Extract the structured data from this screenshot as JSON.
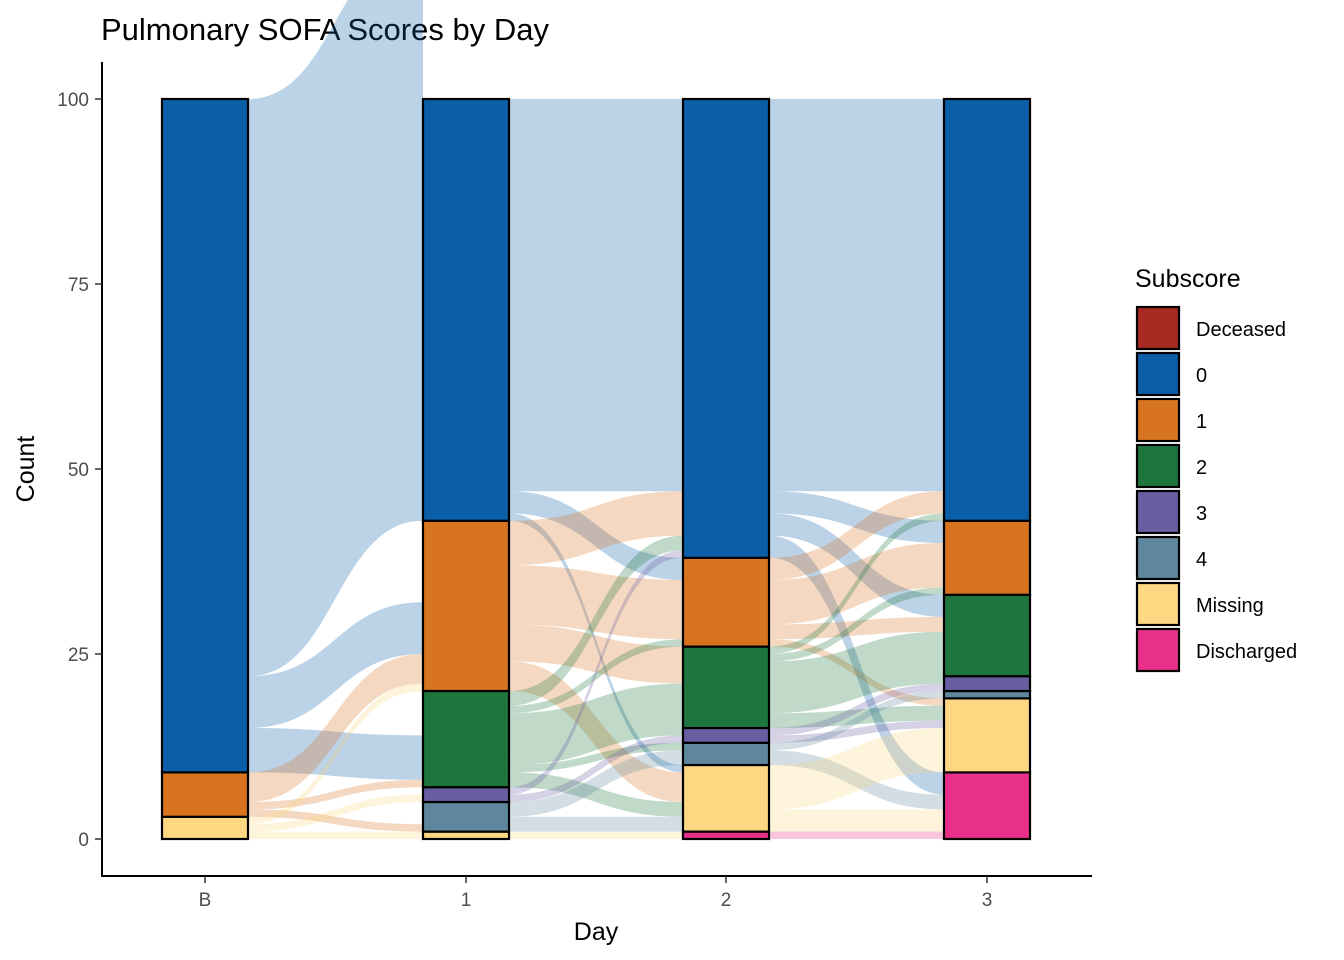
{
  "chart_data": {
    "type": "alluvial",
    "title": "Pulmonary SOFA Scores by Day",
    "xlabel": "Day",
    "ylabel": "Count",
    "categories": [
      "B",
      "1",
      "2",
      "3"
    ],
    "ylim": [
      0,
      100
    ],
    "yticks": [
      0,
      25,
      50,
      75,
      100
    ],
    "grid": false,
    "legend": {
      "title": "Subscore",
      "placement": "right",
      "entries": [
        "Deceased",
        "0",
        "1",
        "2",
        "3",
        "4",
        "Missing",
        "Discharged"
      ]
    },
    "colors": {
      "Deceased": "#A82A22",
      "0": "#0B5EA8",
      "1": "#D8731F",
      "2": "#1E763E",
      "3": "#675FA2",
      "4": "#5E879E",
      "Missing": "#FDD782",
      "Discharged": "#E8308A"
    },
    "stack_order_bottom_to_top": [
      "Discharged",
      "Deceased",
      "Missing",
      "4",
      "3",
      "2",
      "1",
      "0"
    ],
    "series": [
      {
        "name": "Deceased",
        "values": [
          0,
          0,
          0,
          0
        ]
      },
      {
        "name": "0",
        "values": [
          91,
          57,
          62,
          57
        ]
      },
      {
        "name": "1",
        "values": [
          6,
          23,
          12,
          10
        ]
      },
      {
        "name": "2",
        "values": [
          0,
          13,
          11,
          11
        ]
      },
      {
        "name": "3",
        "values": [
          0,
          2,
          2,
          2
        ]
      },
      {
        "name": "4",
        "values": [
          0,
          4,
          3,
          1
        ]
      },
      {
        "name": "Missing",
        "values": [
          3,
          1,
          9,
          10
        ]
      },
      {
        "name": "Discharged",
        "values": [
          0,
          0,
          1,
          9
        ]
      }
    ],
    "flows": [
      [
        {
          "from": "0",
          "to": "0",
          "value": 78
        },
        {
          "from": "0",
          "to": "1",
          "value": 7
        },
        {
          "from": "0",
          "to": "2",
          "value": 6
        },
        {
          "from": "1",
          "to": "1",
          "value": 4
        },
        {
          "from": "1",
          "to": "2",
          "value": 1
        },
        {
          "from": "1",
          "to": "4",
          "value": 1
        },
        {
          "from": "Missing",
          "to": "1",
          "value": 1
        },
        {
          "from": "Missing",
          "to": "3",
          "value": 1
        },
        {
          "from": "Missing",
          "to": "Missing",
          "value": 1
        }
      ],
      [
        {
          "from": "0",
          "to": "0",
          "value": 53
        },
        {
          "from": "0",
          "to": "1",
          "value": 3
        },
        {
          "from": "0",
          "to": "Missing",
          "value": 1
        },
        {
          "from": "1",
          "to": "0",
          "value": 6
        },
        {
          "from": "1",
          "to": "1",
          "value": 8
        },
        {
          "from": "1",
          "to": "2",
          "value": 5
        },
        {
          "from": "1",
          "to": "Missing",
          "value": 4
        },
        {
          "from": "2",
          "to": "0",
          "value": 2
        },
        {
          "from": "2",
          "to": "1",
          "value": 1
        },
        {
          "from": "2",
          "to": "2",
          "value": 6
        },
        {
          "from": "2",
          "to": "3",
          "value": 1
        },
        {
          "from": "2",
          "to": "4",
          "value": 1
        },
        {
          "from": "2",
          "to": "Missing",
          "value": 2
        },
        {
          "from": "3",
          "to": "0",
          "value": 1
        },
        {
          "from": "3",
          "to": "3",
          "value": 1
        },
        {
          "from": "4",
          "to": "4",
          "value": 2
        },
        {
          "from": "4",
          "to": "Missing",
          "value": 2
        },
        {
          "from": "Missing",
          "to": "Discharged",
          "value": 1
        }
      ],
      [
        {
          "from": "0",
          "to": "0",
          "value": 53
        },
        {
          "from": "0",
          "to": "1",
          "value": 3
        },
        {
          "from": "0",
          "to": "2",
          "value": 3
        },
        {
          "from": "0",
          "to": "Discharged",
          "value": 3
        },
        {
          "from": "1",
          "to": "0",
          "value": 3
        },
        {
          "from": "1",
          "to": "1",
          "value": 6
        },
        {
          "from": "1",
          "to": "2",
          "value": 2
        },
        {
          "from": "1",
          "to": "Missing",
          "value": 1
        },
        {
          "from": "2",
          "to": "0",
          "value": 1
        },
        {
          "from": "2",
          "to": "1",
          "value": 1
        },
        {
          "from": "2",
          "to": "2",
          "value": 6
        },
        {
          "from": "2",
          "to": "3",
          "value": 1
        },
        {
          "from": "2",
          "to": "Missing",
          "value": 2
        },
        {
          "from": "3",
          "to": "3",
          "value": 1
        },
        {
          "from": "3",
          "to": "Missing",
          "value": 1
        },
        {
          "from": "4",
          "to": "4",
          "value": 1
        },
        {
          "from": "4",
          "to": "Discharged",
          "value": 2
        },
        {
          "from": "Missing",
          "to": "Missing",
          "value": 6
        },
        {
          "from": "Missing",
          "to": "Discharged",
          "value": 3
        },
        {
          "from": "Discharged",
          "to": "Discharged",
          "value": 1
        }
      ]
    ]
  }
}
